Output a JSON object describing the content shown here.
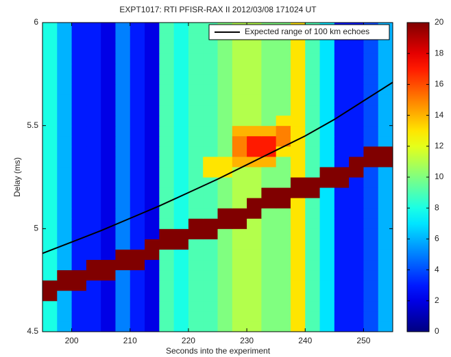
{
  "chart_data": {
    "type": "heatmap",
    "title": "EXPT1017: RTI PFISR-RAX II 2012/03/08 171024 UT",
    "x_label": "Seconds into the experiment",
    "y_label": "Delay (ms)",
    "colormap": "jet",
    "xlim": [
      195,
      255
    ],
    "xticks": [
      200,
      210,
      220,
      230,
      240,
      250
    ],
    "ylim": [
      4.5,
      6
    ],
    "yticks": [
      4.5,
      5,
      5.5,
      6
    ],
    "clim": [
      0,
      20
    ],
    "cticks": [
      0,
      2,
      4,
      6,
      8,
      10,
      12,
      14,
      16,
      18,
      20
    ],
    "legend": "upper right",
    "xbins": [
      195,
      197.5,
      200,
      202.5,
      205,
      207.5,
      210,
      212.5,
      215,
      217.5,
      220,
      222.5,
      225,
      227.5,
      230,
      232.5,
      235,
      237.5,
      240,
      242.5,
      245,
      247.5,
      250,
      252.5,
      255
    ],
    "ybins": [
      4.5,
      4.55,
      4.6,
      4.65,
      4.7,
      4.75,
      4.8,
      4.85,
      4.9,
      4.95,
      5,
      5.05,
      5.1,
      5.15,
      5.2,
      5.25,
      5.3,
      5.35,
      5.4,
      5.45,
      5.5,
      5.55,
      5.6,
      5.65,
      5.7,
      5.75,
      5.8,
      5.85,
      5.9,
      5.95,
      6
    ],
    "values": [
      [
        8,
        6,
        3,
        3,
        2,
        5,
        3,
        2,
        9,
        8,
        9,
        9,
        10,
        11,
        11,
        10,
        10,
        13,
        9,
        7,
        3,
        3,
        4,
        6
      ],
      [
        8,
        6,
        3,
        3,
        2,
        5,
        3,
        2,
        9,
        8,
        9,
        9,
        10,
        11,
        11,
        10,
        10,
        13,
        9,
        7,
        3,
        3,
        4,
        6
      ],
      [
        8,
        6,
        3,
        3,
        2,
        5,
        3,
        2,
        9,
        8,
        9,
        9,
        10,
        11,
        11,
        10,
        10,
        13,
        9,
        7,
        3,
        3,
        4,
        6
      ],
      [
        20,
        6,
        3,
        3,
        2,
        5,
        3,
        2,
        9,
        8,
        9,
        9,
        10,
        11,
        11,
        10,
        10,
        13,
        9,
        7,
        3,
        3,
        4,
        6
      ],
      [
        20,
        20,
        20,
        3,
        2,
        5,
        3,
        2,
        9,
        8,
        9,
        9,
        10,
        11,
        11,
        10,
        10,
        13,
        9,
        7,
        3,
        3,
        4,
        6
      ],
      [
        8,
        20,
        20,
        20,
        20,
        5,
        3,
        2,
        9,
        8,
        9,
        9,
        10,
        11,
        11,
        10,
        10,
        13,
        9,
        7,
        3,
        3,
        4,
        6
      ],
      [
        8,
        6,
        3,
        20,
        20,
        20,
        20,
        2,
        9,
        8,
        9,
        9,
        10,
        11,
        11,
        10,
        10,
        13,
        9,
        7,
        3,
        3,
        4,
        6
      ],
      [
        8,
        6,
        3,
        3,
        2,
        20,
        20,
        20,
        9,
        8,
        9,
        9,
        10,
        11,
        11,
        10,
        10,
        13,
        9,
        7,
        3,
        3,
        4,
        6
      ],
      [
        8,
        6,
        3,
        3,
        2,
        5,
        3,
        20,
        20,
        20,
        9,
        9,
        10,
        11,
        11,
        10,
        10,
        13,
        9,
        7,
        3,
        3,
        4,
        6
      ],
      [
        8,
        6,
        3,
        3,
        2,
        5,
        3,
        2,
        20,
        20,
        20,
        20,
        10,
        11,
        11,
        10,
        10,
        13,
        9,
        7,
        3,
        3,
        4,
        6
      ],
      [
        8,
        6,
        3,
        3,
        2,
        5,
        3,
        2,
        9,
        8,
        20,
        20,
        20,
        20,
        11,
        10,
        10,
        13,
        9,
        7,
        3,
        3,
        4,
        6
      ],
      [
        8,
        6,
        3,
        3,
        2,
        5,
        3,
        2,
        9,
        8,
        9,
        9,
        20,
        20,
        20,
        10,
        10,
        13,
        9,
        7,
        3,
        3,
        4,
        6
      ],
      [
        8,
        6,
        3,
        3,
        2,
        5,
        3,
        2,
        9,
        8,
        9,
        9,
        10,
        11,
        20,
        20,
        20,
        13,
        9,
        7,
        3,
        3,
        4,
        6
      ],
      [
        8,
        6,
        3,
        3,
        2,
        5,
        3,
        2,
        9,
        8,
        9,
        9,
        10,
        11,
        11,
        20,
        20,
        20,
        20,
        7,
        3,
        3,
        4,
        6
      ],
      [
        8,
        6,
        3,
        3,
        2,
        5,
        3,
        2,
        9,
        8,
        9,
        9,
        10,
        11,
        11,
        10,
        10,
        20,
        20,
        20,
        20,
        3,
        4,
        6
      ],
      [
        8,
        6,
        3,
        3,
        2,
        5,
        3,
        2,
        9,
        8,
        9,
        13,
        13,
        11,
        11,
        10,
        10,
        13,
        9,
        20,
        20,
        20,
        4,
        6
      ],
      [
        8,
        6,
        3,
        3,
        2,
        5,
        3,
        2,
        9,
        8,
        9,
        13,
        13,
        14,
        14,
        14,
        10,
        13,
        9,
        7,
        3,
        20,
        20,
        20
      ],
      [
        8,
        6,
        3,
        3,
        2,
        5,
        3,
        2,
        9,
        8,
        9,
        9,
        10,
        15,
        17,
        17,
        13,
        13,
        9,
        7,
        3,
        3,
        20,
        20
      ],
      [
        8,
        6,
        3,
        3,
        2,
        5,
        3,
        2,
        9,
        8,
        9,
        9,
        10,
        15,
        17,
        17,
        15,
        13,
        9,
        7,
        3,
        3,
        4,
        6
      ],
      [
        8,
        6,
        3,
        3,
        2,
        5,
        3,
        2,
        9,
        8,
        9,
        9,
        10,
        14,
        14,
        14,
        15,
        13,
        9,
        7,
        3,
        3,
        4,
        6
      ],
      [
        8,
        6,
        3,
        3,
        2,
        5,
        3,
        2,
        9,
        8,
        9,
        9,
        10,
        11,
        11,
        10,
        13,
        13,
        9,
        7,
        3,
        3,
        4,
        6
      ],
      [
        8,
        6,
        3,
        3,
        2,
        5,
        3,
        2,
        9,
        8,
        9,
        9,
        10,
        11,
        11,
        10,
        10,
        13,
        9,
        7,
        3,
        3,
        4,
        6
      ],
      [
        8,
        6,
        3,
        3,
        2,
        5,
        3,
        2,
        9,
        8,
        9,
        9,
        10,
        11,
        11,
        10,
        10,
        13,
        9,
        7,
        3,
        3,
        4,
        6
      ],
      [
        8,
        6,
        3,
        3,
        2,
        5,
        3,
        2,
        9,
        8,
        9,
        9,
        10,
        11,
        11,
        10,
        10,
        13,
        9,
        7,
        3,
        3,
        4,
        6
      ],
      [
        8,
        6,
        3,
        3,
        2,
        5,
        3,
        2,
        9,
        8,
        9,
        9,
        10,
        11,
        11,
        10,
        10,
        13,
        9,
        7,
        3,
        3,
        4,
        6
      ],
      [
        8,
        6,
        3,
        3,
        2,
        5,
        3,
        2,
        9,
        8,
        9,
        9,
        10,
        11,
        11,
        10,
        10,
        13,
        9,
        7,
        3,
        3,
        4,
        6
      ],
      [
        8,
        6,
        3,
        3,
        2,
        5,
        3,
        2,
        9,
        8,
        9,
        9,
        10,
        11,
        11,
        10,
        10,
        13,
        9,
        7,
        3,
        3,
        4,
        6
      ],
      [
        8,
        6,
        3,
        3,
        2,
        5,
        3,
        2,
        9,
        8,
        9,
        9,
        10,
        11,
        11,
        10,
        10,
        13,
        9,
        7,
        3,
        3,
        4,
        6
      ],
      [
        8,
        6,
        3,
        3,
        2,
        5,
        3,
        2,
        9,
        8,
        9,
        9,
        10,
        11,
        11,
        10,
        10,
        13,
        9,
        7,
        3,
        3,
        4,
        6
      ],
      [
        8,
        6,
        3,
        3,
        2,
        5,
        3,
        2,
        9,
        8,
        9,
        9,
        10,
        11,
        11,
        10,
        10,
        13,
        9,
        7,
        3,
        3,
        4,
        6
      ]
    ],
    "lines": [
      {
        "name": "Expected range of 100 km echoes",
        "color": "#000000",
        "x": [
          195,
          200,
          205,
          210,
          215,
          220,
          225,
          230,
          235,
          240,
          245,
          250,
          255
        ],
        "values": [
          4.88,
          4.935,
          4.99,
          5.05,
          5.11,
          5.175,
          5.24,
          5.31,
          5.38,
          5.45,
          5.53,
          5.62,
          5.71
        ]
      }
    ]
  }
}
